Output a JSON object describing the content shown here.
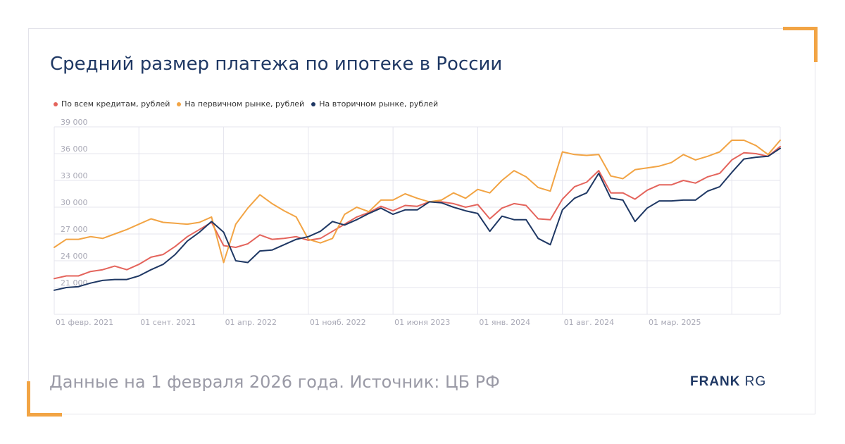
{
  "colors": {
    "accent": "#f2a444",
    "title": "#1f3864",
    "grid": "#e4e4ee",
    "tick": "#a9a9b6",
    "footer": "#9a9aa6"
  },
  "footer_text": "Данные на 1 февраля 2026 года. Источник: ЦБ РФ",
  "brand": {
    "part1": "FRANK",
    "part2": "RG"
  },
  "chart_data": {
    "type": "line",
    "title": "Средний размер платежа по ипотеке в России",
    "xlabel": "",
    "ylabel": "",
    "ylim": [
      18000,
      39000
    ],
    "yticks": [
      21000,
      24000,
      27000,
      30000,
      33000,
      36000,
      39000
    ],
    "ytick_labels": [
      "21 000",
      "24 000",
      "27 000",
      "30 000",
      "33 000",
      "36 000",
      "39 000"
    ],
    "x_count": 61,
    "x_ticks": [
      {
        "index": 0,
        "label": "01 февр. 2021"
      },
      {
        "index": 7,
        "label": "01 сент. 2021"
      },
      {
        "index": 14,
        "label": "01 апр. 2022"
      },
      {
        "index": 21,
        "label": "01 нояб. 2022"
      },
      {
        "index": 28,
        "label": "01 июня 2023"
      },
      {
        "index": 35,
        "label": "01 янв. 2024"
      },
      {
        "index": 42,
        "label": "01 авг. 2024"
      },
      {
        "index": 49,
        "label": "01 мар. 2025"
      },
      {
        "index": 56,
        "label": ""
      }
    ],
    "grid": true,
    "legend_position": "top-left",
    "series": [
      {
        "name": "По всем кредитам, рублей",
        "color": "#e4645c",
        "values": [
          22000,
          22300,
          22300,
          22800,
          23000,
          23400,
          23000,
          23600,
          24400,
          24700,
          25600,
          26700,
          27500,
          28300,
          25700,
          25500,
          25900,
          26900,
          26400,
          26500,
          26700,
          26300,
          26500,
          27300,
          28100,
          28900,
          29400,
          30100,
          29600,
          30200,
          30100,
          30600,
          30600,
          30400,
          30000,
          30300,
          28700,
          29900,
          30400,
          30200,
          28700,
          28600,
          30900,
          32300,
          32800,
          34100,
          31600,
          31600,
          30900,
          31900,
          32500,
          32500,
          33000,
          32700,
          33400,
          33800,
          35300,
          36100,
          36000,
          35700,
          36800
        ]
      },
      {
        "name": "На первичном рынке, рублей",
        "color": "#f2a444",
        "values": [
          25500,
          26400,
          26400,
          26700,
          26500,
          27000,
          27500,
          28100,
          28700,
          28300,
          28200,
          28100,
          28300,
          28900,
          23800,
          28100,
          29900,
          31400,
          30400,
          29600,
          28900,
          26400,
          26000,
          26500,
          29200,
          30000,
          29500,
          30800,
          30800,
          31500,
          31000,
          30600,
          30800,
          31600,
          31000,
          32000,
          31600,
          33000,
          34100,
          33400,
          32200,
          31800,
          36200,
          35900,
          35800,
          35900,
          33500,
          33200,
          34200,
          34400,
          34600,
          35000,
          35900,
          35300,
          35700,
          36200,
          37500,
          37500,
          36900,
          35900,
          37500
        ]
      },
      {
        "name": "На вторичном рынке, рублей",
        "color": "#1f3864",
        "values": [
          20700,
          21000,
          21100,
          21500,
          21800,
          21900,
          21900,
          22300,
          23000,
          23600,
          24700,
          26200,
          27200,
          28400,
          27200,
          24000,
          23800,
          25100,
          25200,
          25800,
          26400,
          26700,
          27300,
          28400,
          28000,
          28600,
          29300,
          29900,
          29200,
          29700,
          29700,
          30600,
          30500,
          30000,
          29600,
          29300,
          27300,
          29000,
          28600,
          28600,
          26500,
          25800,
          29700,
          31000,
          31600,
          33800,
          31000,
          30800,
          28400,
          29900,
          30700,
          30700,
          30800,
          30800,
          31800,
          32300,
          33900,
          35400,
          35600,
          35700,
          36600
        ]
      }
    ]
  }
}
